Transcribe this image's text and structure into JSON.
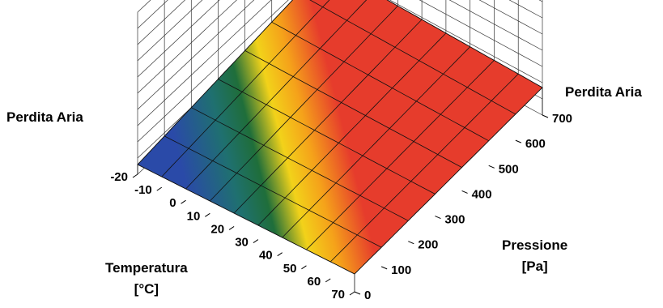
{
  "chart_data": {
    "type": "surface",
    "ylabel": "Perdita Aria",
    "xlabel_line1": "Temperatura",
    "xlabel_line2": "[°C]",
    "zlabel_line1": "Pressione",
    "zlabel_line2": "[Pa]",
    "x_ticks": [
      "-20",
      "-10",
      "0",
      "10",
      "20",
      "30",
      "40",
      "50",
      "60",
      "70"
    ],
    "z_ticks": [
      "0",
      "100",
      "200",
      "300",
      "400",
      "500",
      "600",
      "700"
    ],
    "x_values": [
      -20,
      -10,
      0,
      10,
      20,
      30,
      40,
      50,
      60,
      70
    ],
    "z_values": [
      0,
      100,
      200,
      300,
      400,
      500,
      600,
      700
    ],
    "colorscale": [
      "#2233a8",
      "#1f5e9a",
      "#1a7a6a",
      "#1e6b3a",
      "#f2d21a",
      "#f5a21a",
      "#e63c2c"
    ],
    "grid": true
  }
}
